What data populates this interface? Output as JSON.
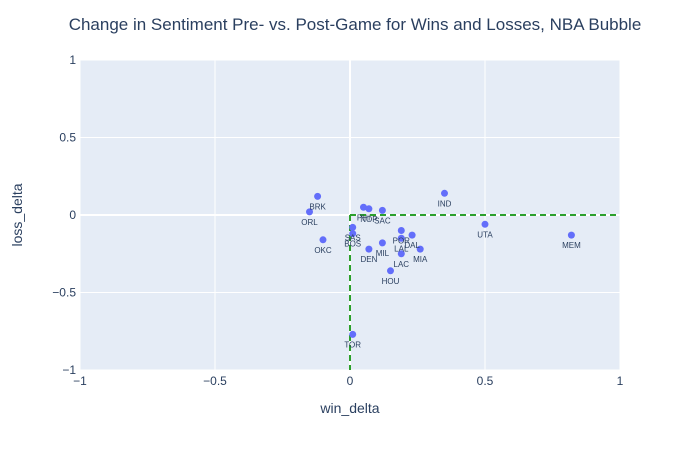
{
  "chart_data": {
    "type": "scatter",
    "title": "Change in Sentiment Pre- vs. Post-Game for Wins and Losses, NBA Bubble",
    "xlabel": "win_delta",
    "ylabel": "loss_delta",
    "xlim": [
      -1,
      1
    ],
    "ylim": [
      -1,
      1
    ],
    "xticks": [
      {
        "value": -1,
        "label": "−1"
      },
      {
        "value": -0.5,
        "label": "−0.5"
      },
      {
        "value": 0,
        "label": "0"
      },
      {
        "value": 0.5,
        "label": "0.5"
      },
      {
        "value": 1,
        "label": "1"
      }
    ],
    "yticks": [
      {
        "value": -1,
        "label": "−1"
      },
      {
        "value": -0.5,
        "label": "−0.5"
      },
      {
        "value": 0,
        "label": "0"
      },
      {
        "value": 0.5,
        "label": "0.5"
      },
      {
        "value": 1,
        "label": "1"
      }
    ],
    "grid": true,
    "colors": {
      "plot_bg": "#e5ecf6",
      "grid": "#ffffff",
      "marker": "#636efa",
      "guide": "#2ca02c",
      "text": "#2a3f5f"
    },
    "guide_lines": [
      {
        "x": [
          0,
          1
        ],
        "y": [
          0,
          0
        ],
        "style": "dash"
      },
      {
        "x": [
          0,
          0
        ],
        "y": [
          0,
          -1
        ],
        "style": "dash"
      }
    ],
    "points": [
      {
        "label": "BRK",
        "x": -0.12,
        "y": 0.12
      },
      {
        "label": "ORL",
        "x": -0.15,
        "y": 0.02
      },
      {
        "label": "OKC",
        "x": -0.1,
        "y": -0.16
      },
      {
        "label": "SAS",
        "x": 0.01,
        "y": -0.08
      },
      {
        "label": "BOS",
        "x": 0.01,
        "y": -0.12
      },
      {
        "label": "PHI",
        "x": 0.05,
        "y": 0.05
      },
      {
        "label": "NOP",
        "x": 0.07,
        "y": 0.04
      },
      {
        "label": "SAC",
        "x": 0.12,
        "y": 0.03
      },
      {
        "label": "IND",
        "x": 0.35,
        "y": 0.14
      },
      {
        "label": "UTA",
        "x": 0.5,
        "y": -0.06
      },
      {
        "label": "MEM",
        "x": 0.82,
        "y": -0.13
      },
      {
        "label": "POR",
        "x": 0.19,
        "y": -0.1
      },
      {
        "label": "LAL",
        "x": 0.19,
        "y": -0.15
      },
      {
        "label": "DAL",
        "x": 0.23,
        "y": -0.13
      },
      {
        "label": "MIL",
        "x": 0.12,
        "y": -0.18
      },
      {
        "label": "DEN",
        "x": 0.07,
        "y": -0.22
      },
      {
        "label": "MIA",
        "x": 0.26,
        "y": -0.22
      },
      {
        "label": "LAC",
        "x": 0.19,
        "y": -0.25
      },
      {
        "label": "HOU",
        "x": 0.15,
        "y": -0.36
      },
      {
        "label": "TOR",
        "x": 0.01,
        "y": -0.77
      }
    ]
  }
}
